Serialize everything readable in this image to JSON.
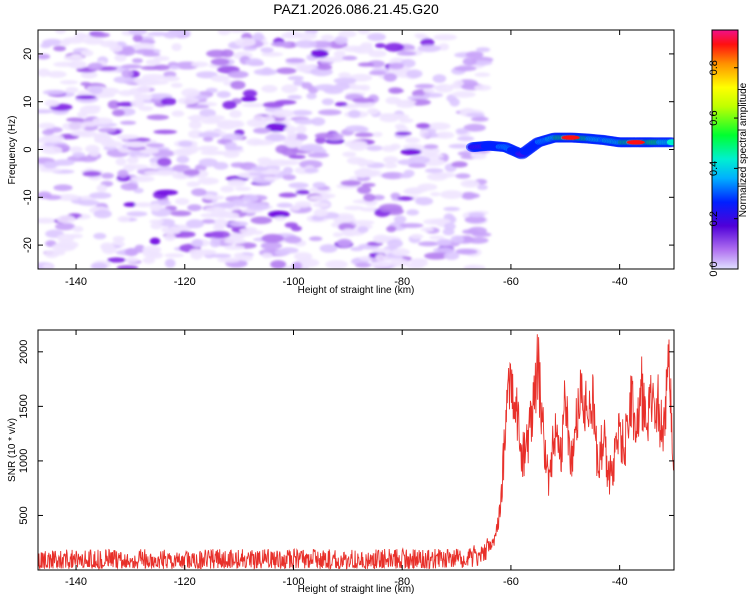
{
  "title": "PAZ1.2026.086.21.45.G20",
  "chart_data": [
    {
      "type": "heatmap",
      "xlabel": "Height of straight line (km)",
      "ylabel": "Frequency (Hz)",
      "xlim": [
        -147,
        -30
      ],
      "ylim": [
        -25,
        25
      ],
      "xticks": [
        -140,
        -120,
        -100,
        -80,
        -60,
        -40
      ],
      "yticks": [
        -20,
        -10,
        0,
        10,
        20
      ],
      "colorbar": {
        "label": "Normalized spectral amplitude",
        "range": [
          0,
          0.95
        ],
        "ticks": [
          0.0,
          0.2,
          0.4,
          0.6,
          0.8
        ]
      },
      "noise_region_x": [
        -146,
        -65
      ],
      "signal_trace": {
        "x": [
          -67,
          -64,
          -61,
          -58,
          -55,
          -52,
          -49,
          -46,
          -43,
          -40,
          -37,
          -34,
          -30
        ],
        "frequency_hz": [
          0.5,
          0.8,
          0.5,
          -1.0,
          1.5,
          2.5,
          2.5,
          2.3,
          2.0,
          1.5,
          1.5,
          1.5,
          1.5
        ],
        "amplitude": [
          0.25,
          0.35,
          0.55,
          0.3,
          0.45,
          0.7,
          0.95,
          0.75,
          0.6,
          0.7,
          0.95,
          0.8,
          0.6
        ]
      }
    },
    {
      "type": "line",
      "xlabel": "Height of straight line (km)",
      "ylabel": "SNR (10 * v/v)",
      "xlim": [
        -147,
        -30
      ],
      "ylim": [
        0,
        2200
      ],
      "xticks": [
        -140,
        -120,
        -100,
        -80,
        -60,
        -40
      ],
      "yticks": [
        500,
        1000,
        1500,
        2000
      ],
      "color": "#e8302a",
      "envelope": {
        "x": [
          -147,
          -70,
          -65,
          -63,
          -62,
          -61,
          -60,
          -59,
          -58,
          -57,
          -56,
          -55,
          -54,
          -53,
          -52,
          -51,
          -50,
          -49,
          -48,
          -47,
          -46,
          -45,
          -44,
          -43,
          -42,
          -41,
          -40,
          -39,
          -38,
          -37,
          -36,
          -35,
          -34,
          -33,
          -32,
          -31,
          -30
        ],
        "values": [
          90,
          95,
          150,
          300,
          600,
          1400,
          1950,
          1700,
          1100,
          1300,
          1600,
          2150,
          1300,
          900,
          1400,
          1050,
          1700,
          1100,
          1450,
          1900,
          1500,
          1800,
          1000,
          1350,
          900,
          1100,
          1400,
          1250,
          1700,
          1500,
          1800,
          1550,
          1800,
          1700,
          1350,
          2000,
          1150
        ]
      },
      "noise_amplitude": 110
    }
  ]
}
